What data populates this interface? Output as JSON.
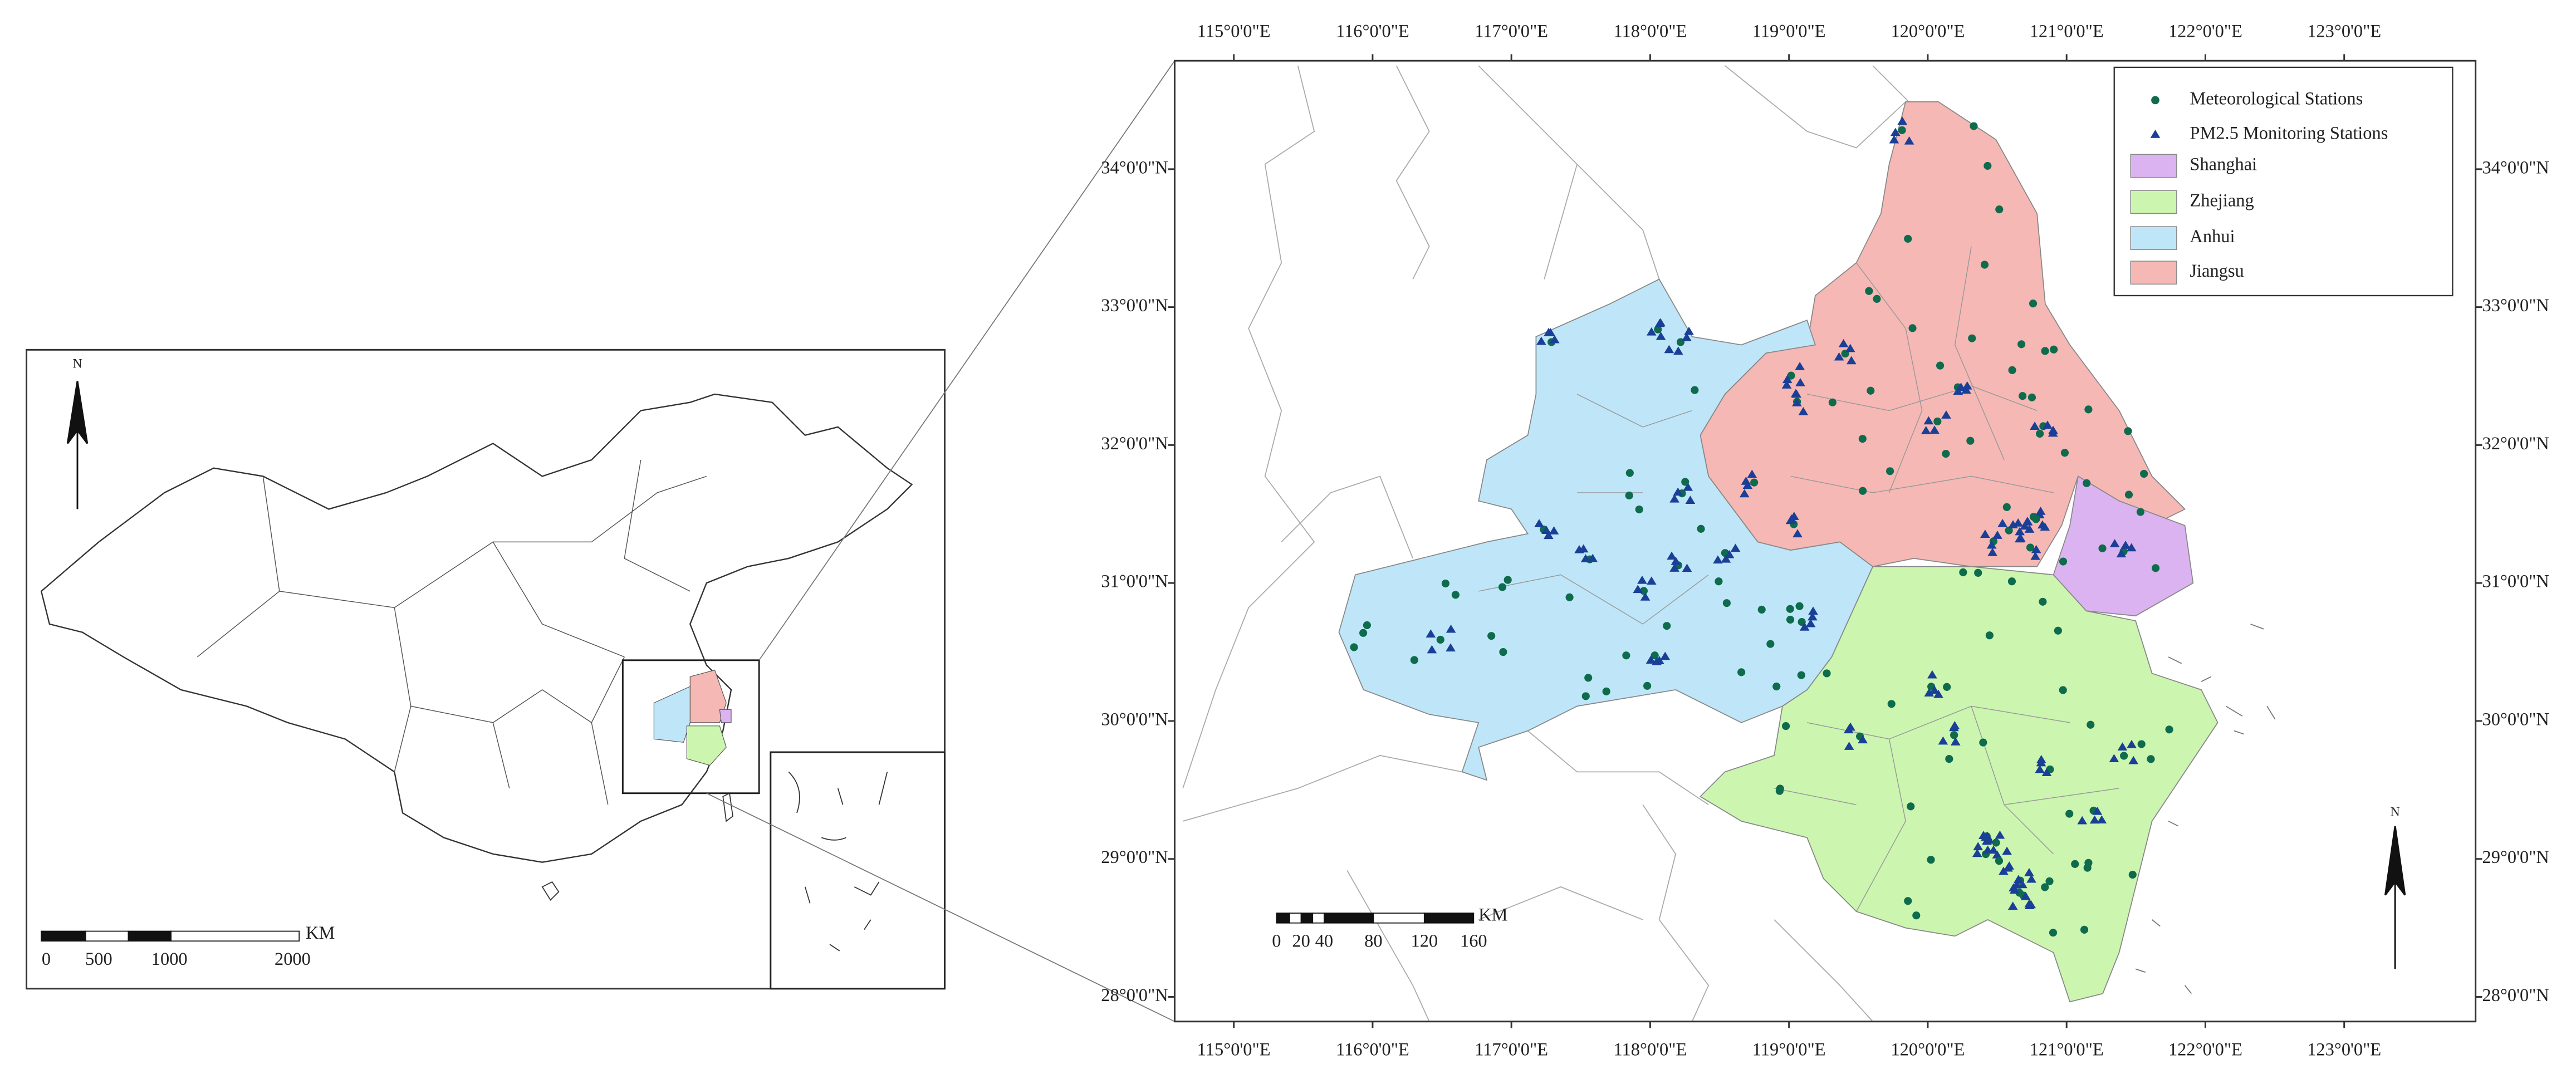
{
  "overview_map": {
    "north_label": "N",
    "scale_bar": {
      "unit": "KM",
      "labels": [
        "0",
        "500",
        "1000",
        "2000"
      ]
    }
  },
  "detail_map": {
    "longitude_labels": [
      "115°0'0\"E",
      "116°0'0\"E",
      "117°0'0\"E",
      "118°0'0\"E",
      "119°0'0\"E",
      "120°0'0\"E",
      "121°0'0\"E",
      "122°0'0\"E",
      "123°0'0\"E"
    ],
    "latitude_labels": [
      "28°0'0\"N",
      "29°0'0\"N",
      "30°0'0\"N",
      "31°0'0\"N",
      "32°0'0\"N",
      "33°0'0\"N",
      "34°0'0\"N"
    ],
    "legend": [
      "Meteorological Stations",
      "PM2.5 Monitoring Stations",
      "Shanghai",
      "Zhejiang",
      "Anhui",
      "Jiangsu"
    ],
    "north_label": "N",
    "scale_bar": {
      "unit": "KM",
      "labels": [
        "0",
        "20",
        "40",
        "80",
        "120",
        "160"
      ]
    }
  }
}
